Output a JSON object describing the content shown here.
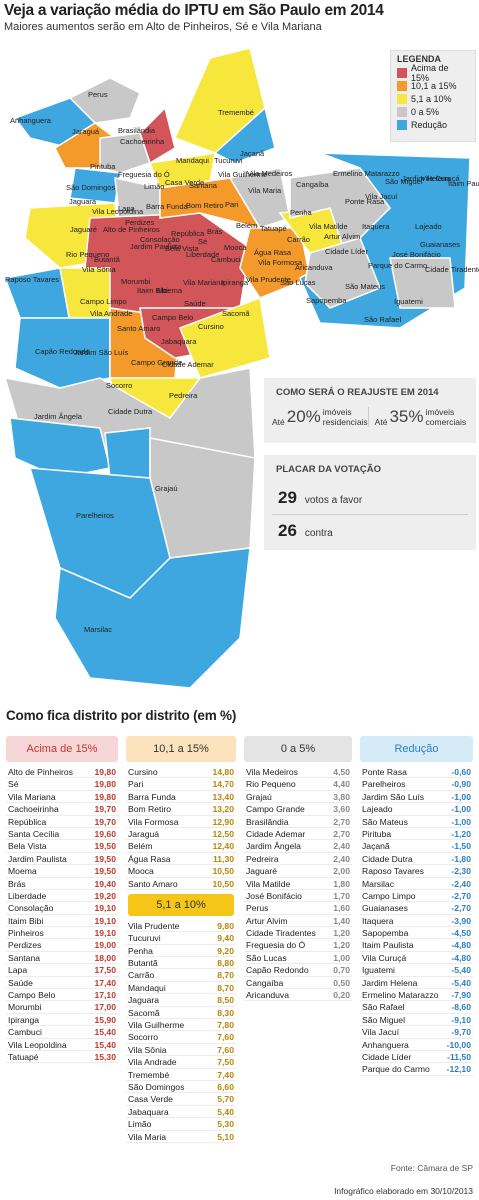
{
  "title": "Veja a variação média do IPTU em São Paulo em 2014",
  "subtitle": "Maiores aumentos serão em Alto de Pinheiros, Sé e Vila Mariana",
  "legend": {
    "title": "LEGENDA",
    "items": [
      {
        "label": "Acima de 15%",
        "color": "#d2555a"
      },
      {
        "label": "10,1 a 15%",
        "color": "#f39a2a"
      },
      {
        "label": "5,1 a 10%",
        "color": "#f7e63b"
      },
      {
        "label": "0 a 5%",
        "color": "#c8c8c8"
      },
      {
        "label": "Redução",
        "color": "#3ea7df"
      }
    ]
  },
  "map_labels": [
    "Perus",
    "Anhanguera",
    "Jaraguá",
    "Brasilândia",
    "Cachoeirinha",
    "Tremembé",
    "Jaçanã",
    "Pirituba",
    "Mandaqui",
    "Tucuruvi",
    "Freguesia do Ó",
    "Limão",
    "Casa Verde",
    "Santana",
    "Vila Medeiros",
    "São Domingos",
    "Jaguara",
    "Vila Leopoldina",
    "Lapa",
    "Barra Funda",
    "Bom Retiro",
    "Pari",
    "Vila Guilherme",
    "Vila Maria",
    "Cangaíba",
    "Ermelino Matarazzo",
    "São Miguel",
    "Vila Jacuí",
    "Itaim Paulista",
    "Jardim Helena",
    "Vila Curuçá",
    "Ponte Rasa",
    "Jaguaré",
    "Alto de Pinheiros",
    "Perdizes",
    "Consolação",
    "República",
    "Sé",
    "Brás",
    "Belém",
    "Tatuapé",
    "Penha",
    "Lajeado",
    "Itaquera",
    "Guaianases",
    "Rio Pequeno",
    "Butantã",
    "Jardim Paulista",
    "Bela Vista",
    "Liberdade",
    "Cambuci",
    "Mooca",
    "Água Rasa",
    "Vila Formosa",
    "Carrão",
    "Aricanduva",
    "Vila Matilde",
    "Artur Alvim",
    "Cidade Líder",
    "José Bonifácio",
    "Parque do Carmo",
    "Cidade Tiradentes",
    "Raposo Tavares",
    "Vila Sônia",
    "Morumbi",
    "Itaim Bibi",
    "Moema",
    "Vila Mariana",
    "Ipiranga",
    "Vila Prudente",
    "São Lucas",
    "Sapopemba",
    "São Mateus",
    "Iguatemi",
    "São Rafael",
    "Campo Limpo",
    "Vila Andrade",
    "Santo Amaro",
    "Campo Belo",
    "Saúde",
    "Cursino",
    "Sacomã",
    "Jabaquara",
    "Capão Redondo",
    "Jardim São Luís",
    "Campo Grande",
    "Socorro",
    "Cidade Ademar",
    "Pedreira",
    "Jardim Ângela",
    "Cidade Dutra",
    "Grajaú",
    "Parelheiros",
    "Marsilac"
  ],
  "reajuste": {
    "title": "COMO SERÁ O REAJUSTE EM 2014",
    "items": [
      {
        "pre": "Até",
        "value": "20%",
        "label": "imóveis residenciais"
      },
      {
        "pre": "Até",
        "value": "35%",
        "label": "imóveis comerciais"
      }
    ]
  },
  "placar": {
    "title": "PLACAR DA VOTAÇÃO",
    "favor": {
      "n": "29",
      "label": "votos a favor"
    },
    "contra": {
      "n": "26",
      "label": "contra"
    }
  },
  "section_title": "Como fica distrito por distrito (em %)",
  "columns": [
    {
      "header": "Acima de 15%",
      "color": "#f6d6d6",
      "text": "#c0392b",
      "rows": [
        [
          "Alto de Pinheiros",
          "19,80"
        ],
        [
          "Sé",
          "19,80"
        ],
        [
          "Vila Mariana",
          "19,80"
        ],
        [
          "Cachoeirinha",
          "19,70"
        ],
        [
          "República",
          "19,70"
        ],
        [
          "Santa Cecília",
          "19,60"
        ],
        [
          "Bela Vista",
          "19,50"
        ],
        [
          "Jardim Paulista",
          "19,50"
        ],
        [
          "Moema",
          "19,50"
        ],
        [
          "Brás",
          "19,40"
        ],
        [
          "Liberdade",
          "19,20"
        ],
        [
          "Consolação",
          "19,10"
        ],
        [
          "Itaim Bibi",
          "19,10"
        ],
        [
          "Pinheiros",
          "19,10"
        ],
        [
          "Perdizes",
          "19,00"
        ],
        [
          "Santana",
          "18,00"
        ],
        [
          "Lapa",
          "17,50"
        ],
        [
          "Saúde",
          "17,40"
        ],
        [
          "Campo Belo",
          "17,10"
        ],
        [
          "Morumbi",
          "17,00"
        ],
        [
          "Ipiranga",
          "15,90"
        ],
        [
          "Cambuci",
          "15,40"
        ],
        [
          "Vila Leopoldina",
          "15,40"
        ],
        [
          "Tatuapé",
          "15,30"
        ]
      ]
    },
    {
      "header": "10,1 a 15%",
      "color": "#fde3bd",
      "text": "#333",
      "rows": [
        [
          "Cursino",
          "14,80"
        ],
        [
          "Pari",
          "14,70"
        ],
        [
          "Barra Funda",
          "13,40"
        ],
        [
          "Bom Retiro",
          "13,20"
        ],
        [
          "Vila Formosa",
          "12,90"
        ],
        [
          "Jaraguá",
          "12,50"
        ],
        [
          "Belém",
          "12,40"
        ],
        [
          "Água Rasa",
          "11,30"
        ],
        [
          "Mooca",
          "10,50"
        ],
        [
          "Santo Amaro",
          "10,50"
        ]
      ],
      "mid_header": "5,1 a 10%",
      "rows2": [
        [
          "Vila Prudente",
          "9,80"
        ],
        [
          "Tucuruvi",
          "9,40"
        ],
        [
          "Penha",
          "9,20"
        ],
        [
          "Butantã",
          "8,80"
        ],
        [
          "Carrão",
          "8,70"
        ],
        [
          "Mandaqui",
          "8,70"
        ],
        [
          "Jaguara",
          "8,50"
        ],
        [
          "Sacomã",
          "8,30"
        ],
        [
          "Vila Guilherme",
          "7,80"
        ],
        [
          "Socorro",
          "7,60"
        ],
        [
          "Vila Sônia",
          "7,60"
        ],
        [
          "Vila Andrade",
          "7,50"
        ],
        [
          "Tremembé",
          "7,40"
        ],
        [
          "São Domingos",
          "6,60"
        ],
        [
          "Casa Verde",
          "5,70"
        ],
        [
          "Jabaquara",
          "5,40"
        ],
        [
          "Limão",
          "5,30"
        ],
        [
          "Vila Maria",
          "5,10"
        ]
      ]
    },
    {
      "header": "0 a 5%",
      "color": "#e4e4e4",
      "text": "#333",
      "rows": [
        [
          "Vila Medeiros",
          "4,50"
        ],
        [
          "Rio Pequeno",
          "4,40"
        ],
        [
          "Grajaú",
          "3,80"
        ],
        [
          "Campo Grande",
          "3,60"
        ],
        [
          "Brasilândia",
          "2,70"
        ],
        [
          "Cidade Ademar",
          "2,70"
        ],
        [
          "Jardim Ângela",
          "2,40"
        ],
        [
          "Pedreira",
          "2,40"
        ],
        [
          "Jaguaré",
          "2,00"
        ],
        [
          "Vila Matilde",
          "1,80"
        ],
        [
          "José Bonifácio",
          "1,70"
        ],
        [
          "Perus",
          "1,60"
        ],
        [
          "Artur Alvim",
          "1,40"
        ],
        [
          "Cidade Tiradentes",
          "1,20"
        ],
        [
          "Freguesia do Ó",
          "1,20"
        ],
        [
          "São Lucas",
          "1,00"
        ],
        [
          "Capão Redondo",
          "0,70"
        ],
        [
          "Cangaíba",
          "0,50"
        ],
        [
          "Aricanduva",
          "0,20"
        ]
      ]
    },
    {
      "header": "Redução",
      "color": "#d5ecf8",
      "text": "#2a7fc1",
      "rows": [
        [
          "Ponte Rasa",
          "-0,60"
        ],
        [
          "Parelheiros",
          "-0,90"
        ],
        [
          "Jardim São Luís",
          "-1,00"
        ],
        [
          "Lajeado",
          "-1,00"
        ],
        [
          "São Mateus",
          "-1,00"
        ],
        [
          "Pirituba",
          "-1,20"
        ],
        [
          "Jaçanã",
          "-1,50"
        ],
        [
          "Cidade Dutra",
          "-1,80"
        ],
        [
          "Raposo Tavares",
          "-2,30"
        ],
        [
          "Marsilac",
          "-2,40"
        ],
        [
          "Campo Limpo",
          "-2,70"
        ],
        [
          "Guaianases",
          "-2,70"
        ],
        [
          "Itaquera",
          "-3,90"
        ],
        [
          "Sapopemba",
          "-4,50"
        ],
        [
          "Itaim Paulista",
          "-4,80"
        ],
        [
          "Vila Curuçá",
          "-4,80"
        ],
        [
          "Iguatemi",
          "-5,40"
        ],
        [
          "Jardim Helena",
          "-5,40"
        ],
        [
          "Ermelino Matarazzo",
          "-7,90"
        ],
        [
          "São Rafael",
          "-8,60"
        ],
        [
          "São Miguel",
          "-9,10"
        ],
        [
          "Vila Jacuí",
          "-9,70"
        ],
        [
          "Anhanguera",
          "-10,00"
        ],
        [
          "Cidade Líder",
          "-11,50"
        ],
        [
          "Parque do Carmo",
          "-12,10"
        ]
      ]
    }
  ],
  "source": "Fonte: Câmara de SP",
  "credit": "Infográfico elaborado em 30/10/2013"
}
